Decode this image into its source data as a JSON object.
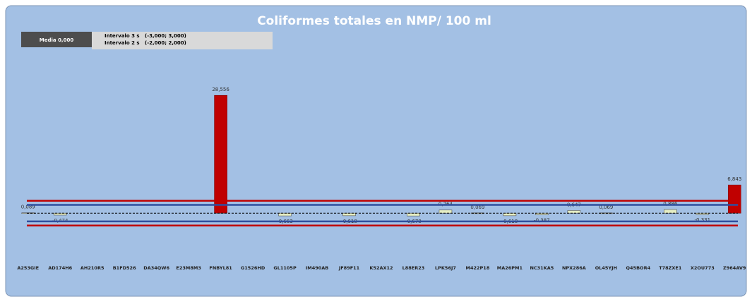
{
  "chart_data": {
    "type": "bar",
    "title": "Coliformes totales en NMP/ 100 ml",
    "categories": [
      "A253GIE",
      "AD174H6",
      "AH210R5",
      "B1FD526",
      "DA34QW6",
      "E23M8M3",
      "FNBYL81",
      "G1526HD",
      "GL1105P",
      "IM490AB",
      "JF89F11",
      "K52AX12",
      "L88ER23",
      "LPK56J7",
      "M422P18",
      "MA26PM1",
      "NC31KA5",
      "NPX286A",
      "OL45YJH",
      "Q45BOR4",
      "T78ZXE1",
      "X2OU773",
      "Z964AV9"
    ],
    "values": [
      0.089,
      -0.474,
      null,
      null,
      null,
      null,
      28.556,
      null,
      -0.663,
      null,
      -0.618,
      null,
      -0.678,
      0.764,
      0.069,
      -0.618,
      -0.387,
      0.647,
      0.069,
      null,
      0.886,
      -0.331,
      6.843
    ],
    "value_labels": [
      "0,089",
      "-0,474",
      null,
      null,
      null,
      null,
      "28,556",
      null,
      "-0,663",
      null,
      "-0,618",
      null,
      "-0,678",
      "0,764",
      "0,069",
      "-0,618",
      "-0,387",
      "0,647",
      "0,069",
      null,
      "0,886",
      "-0,331",
      "6,843"
    ],
    "ylim": [
      -8,
      38
    ],
    "mean": {
      "label": "Media 0,000",
      "value": 0
    },
    "intervals": [
      {
        "label": "Intervalo 3 s",
        "range_label": "(-3,000; 3,000)",
        "range": [
          -3,
          3
        ],
        "color": "#c00000"
      },
      {
        "label": "Intervalo 2 s",
        "range_label": "(-2,000; 2,000)",
        "range": [
          -2,
          2
        ],
        "color": "#2f4f9f"
      }
    ],
    "color": "#c00000",
    "inner_color": "#e4edc4"
  }
}
